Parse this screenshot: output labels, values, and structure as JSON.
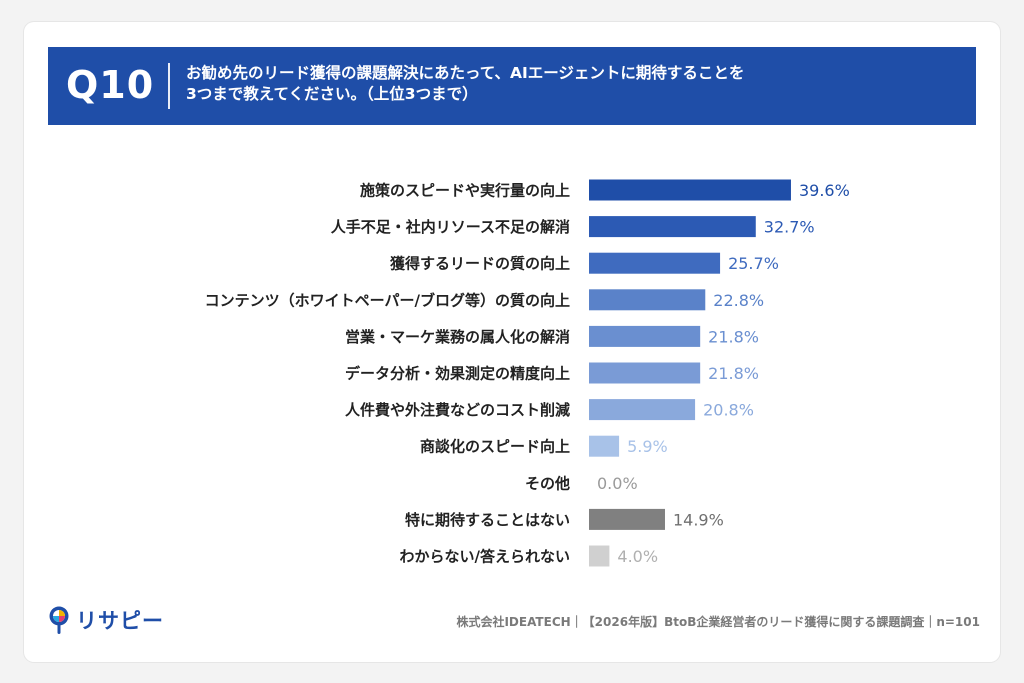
{
  "header": {
    "qnum": "Q10",
    "question_line1": "お勧め先のリード獲得の課題解決にあたって、AIエージェントに期待することを",
    "question_line2": "3つまで教えてください。（上位3つまで）"
  },
  "chart_data": {
    "type": "bar",
    "orientation": "horizontal",
    "categories": [
      "施策のスピードや実行量の向上",
      "人手不足・社内リソース不足の解消",
      "獲得するリードの質の向上",
      "コンテンツ（ホワイトペーパー/ブログ等）の質の向上",
      "営業・マーケ業務の属人化の解消",
      "データ分析・効果測定の精度向上",
      "人件費や外注費などのコスト削減",
      "商談化のスピード向上",
      "その他",
      "特に期待することはない",
      "わからない/答えられない"
    ],
    "values": [
      39.6,
      32.7,
      25.7,
      22.8,
      21.8,
      21.8,
      20.8,
      5.9,
      0.0,
      14.9,
      4.0
    ],
    "value_labels": [
      "39.6%",
      "32.7%",
      "25.7%",
      "22.8%",
      "21.8%",
      "21.8%",
      "20.8%",
      "5.9%",
      "0.0%",
      "14.9%",
      "4.0%"
    ],
    "bar_colors": [
      "#1f4ea8",
      "#2c5ab4",
      "#3f6bbf",
      "#5a82c9",
      "#6a8fd0",
      "#7a9bd6",
      "#8aa9dc",
      "#a8c2e8",
      "#bdbdbd",
      "#808080",
      "#d0d0d0"
    ],
    "label_colors": [
      "#1f4ea8",
      "#2c5ab4",
      "#3f6bbf",
      "#5a82c9",
      "#6a8fd0",
      "#7a9bd6",
      "#8aa9dc",
      "#a8c2e8",
      "#9a9a9a",
      "#707070",
      "#b0b0b0"
    ],
    "xlim": [
      0,
      100
    ]
  },
  "footer": {
    "logo_text": "リサピー",
    "note": "株式会社IDEATECH｜【2026年版】BtoB企業経営者のリード獲得に関する課題調査｜n=101"
  }
}
